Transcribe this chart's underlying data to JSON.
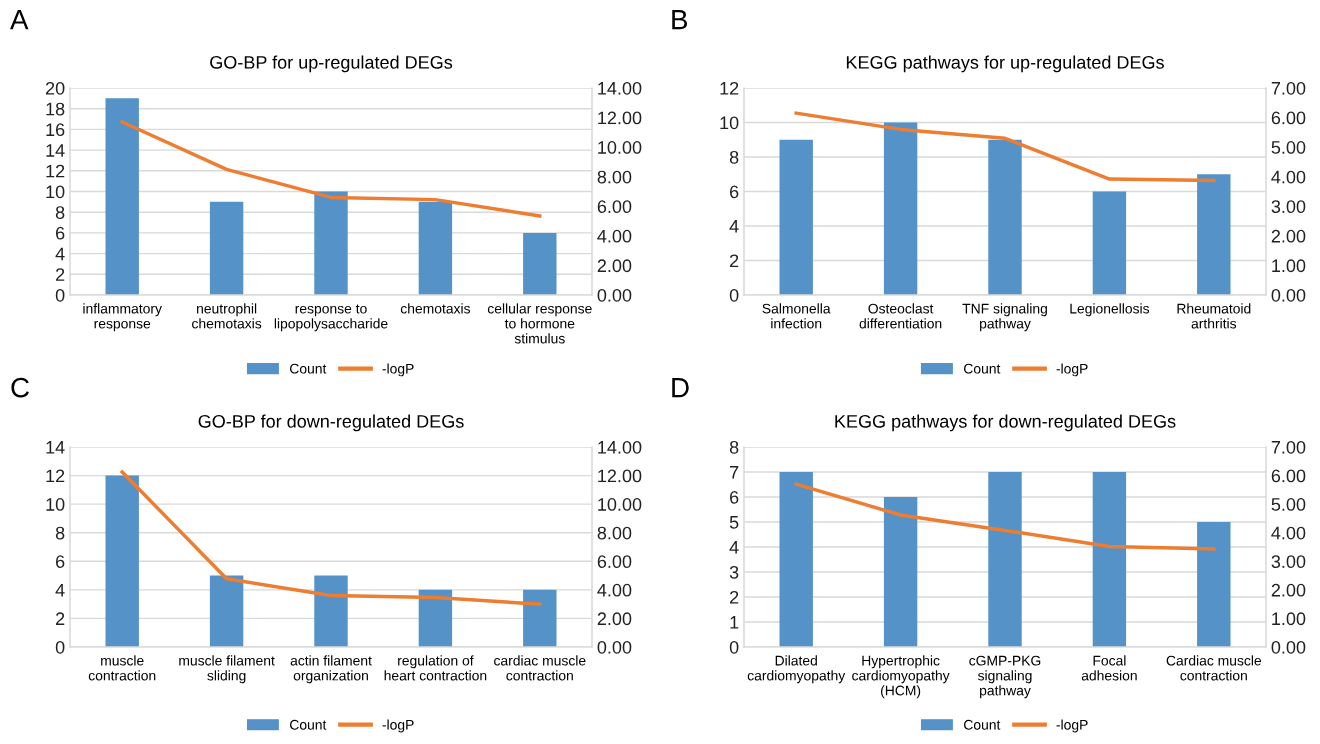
{
  "chart_data": [
    {
      "type": "bar",
      "title": "GO-BP for up-regulated DEGs",
      "annotations": [
        "A"
      ],
      "categories": [
        "inflammatory\nresponse",
        "neutrophil\nchemotaxis",
        "response to\nlipopolysaccharide",
        "chemotaxis",
        "cellular response\nto hormone\nstimulus"
      ],
      "series": [
        {
          "name": "Count",
          "color": "#5592c8",
          "values": [
            19,
            9,
            10,
            9,
            6
          ]
        },
        {
          "name": "-logP",
          "type": "line",
          "axis": "y2",
          "color": "#ed7d31",
          "values": [
            11.7,
            8.5,
            6.6,
            6.45,
            5.35
          ]
        }
      ],
      "ylim": [
        0,
        20
      ],
      "yticks": [
        0,
        2,
        4,
        6,
        8,
        10,
        12,
        14,
        16,
        18,
        20
      ],
      "y2lim": [
        0,
        14
      ],
      "y2ticks": [
        {
          "value": 0,
          "label": "0.00"
        },
        {
          "value": 2,
          "label": "2.00"
        },
        {
          "value": 4,
          "label": "4.00"
        },
        {
          "value": 6,
          "label": "6.00"
        },
        {
          "value": 8,
          "label": "8.00"
        },
        {
          "value": 10,
          "label": "10.00"
        },
        {
          "value": 12,
          "label": "12.00"
        },
        {
          "value": 14,
          "label": "14.00"
        }
      ],
      "grid": "y",
      "legend": "bottom",
      "marker": "none"
    },
    {
      "type": "bar",
      "title": "KEGG pathways for up-regulated DEGs",
      "annotations": [
        "B"
      ],
      "categories": [
        "Salmonella\ninfection",
        "Osteoclast\ndifferentiation",
        "TNF signaling\npathway",
        "Legionellosis",
        "Rheumatoid\narthritis"
      ],
      "series": [
        {
          "name": "Count",
          "color": "#5592c8",
          "values": [
            9,
            10,
            9,
            6,
            7
          ]
        },
        {
          "name": "-logP",
          "type": "line",
          "axis": "y2",
          "color": "#ed7d31",
          "values": [
            6.15,
            5.6,
            5.3,
            3.92,
            3.87
          ]
        }
      ],
      "ylim": [
        0,
        12
      ],
      "yticks": [
        0,
        2,
        4,
        6,
        8,
        10,
        12
      ],
      "y2lim": [
        0,
        7
      ],
      "y2ticks": [
        {
          "value": 0,
          "label": "0.00"
        },
        {
          "value": 1,
          "label": "1.00"
        },
        {
          "value": 2,
          "label": "2.00"
        },
        {
          "value": 3,
          "label": "3.00"
        },
        {
          "value": 4,
          "label": "4.00"
        },
        {
          "value": 5,
          "label": "5.00"
        },
        {
          "value": 6,
          "label": "6.00"
        },
        {
          "value": 7,
          "label": "7.00"
        }
      ],
      "grid": "y",
      "legend": "bottom",
      "marker": "none"
    },
    {
      "type": "bar",
      "title": "GO-BP for down-regulated DEGs",
      "annotations": [
        "C"
      ],
      "categories": [
        "muscle\ncontraction",
        "muscle filament\nsliding",
        "actin filament\norganization",
        "regulation of\nheart contraction",
        "cardiac muscle\ncontraction"
      ],
      "series": [
        {
          "name": "Count",
          "color": "#5592c8",
          "values": [
            12,
            5,
            5,
            4,
            4
          ]
        },
        {
          "name": "-logP",
          "type": "line",
          "axis": "y2",
          "color": "#ed7d31",
          "values": [
            12.25,
            4.78,
            3.6,
            3.46,
            3.0
          ]
        }
      ],
      "ylim": [
        0,
        14
      ],
      "yticks": [
        0,
        2,
        4,
        6,
        8,
        10,
        12,
        14
      ],
      "y2lim": [
        0,
        14
      ],
      "y2ticks": [
        {
          "value": 0,
          "label": "0.00"
        },
        {
          "value": 2,
          "label": "2.00"
        },
        {
          "value": 4,
          "label": "4.00"
        },
        {
          "value": 6,
          "label": "6.00"
        },
        {
          "value": 8,
          "label": "8.00"
        },
        {
          "value": 10,
          "label": "10.00"
        },
        {
          "value": 12,
          "label": "12.00"
        },
        {
          "value": 14,
          "label": "14.00"
        }
      ],
      "grid": "y",
      "legend": "bottom",
      "marker": "none"
    },
    {
      "type": "bar",
      "title": "KEGG pathways for down-regulated DEGs",
      "annotations": [
        "D"
      ],
      "categories": [
        "Dilated\ncardiomyopathy",
        "Hypertrophic\ncardiomyopathy\n(HCM)",
        "cGMP-PKG\nsignaling\npathway",
        "Focal\nadhesion",
        "Cardiac muscle\ncontraction"
      ],
      "series": [
        {
          "name": "Count",
          "color": "#5592c8",
          "values": [
            7,
            6,
            7,
            7,
            5
          ]
        },
        {
          "name": "-logP",
          "type": "line",
          "axis": "y2",
          "color": "#ed7d31",
          "values": [
            5.7,
            4.62,
            4.08,
            3.52,
            3.43
          ]
        }
      ],
      "ylim": [
        0,
        8
      ],
      "yticks": [
        0,
        1,
        2,
        3,
        4,
        5,
        6,
        7,
        8
      ],
      "y2lim": [
        0,
        7
      ],
      "y2ticks": [
        {
          "value": 0,
          "label": "0.00"
        },
        {
          "value": 1,
          "label": "1.00"
        },
        {
          "value": 2,
          "label": "2.00"
        },
        {
          "value": 3,
          "label": "3.00"
        },
        {
          "value": 4,
          "label": "4.00"
        },
        {
          "value": 5,
          "label": "5.00"
        },
        {
          "value": 6,
          "label": "6.00"
        },
        {
          "value": 7,
          "label": "7.00"
        }
      ],
      "grid": "y",
      "legend": "bottom",
      "marker": "none"
    }
  ]
}
